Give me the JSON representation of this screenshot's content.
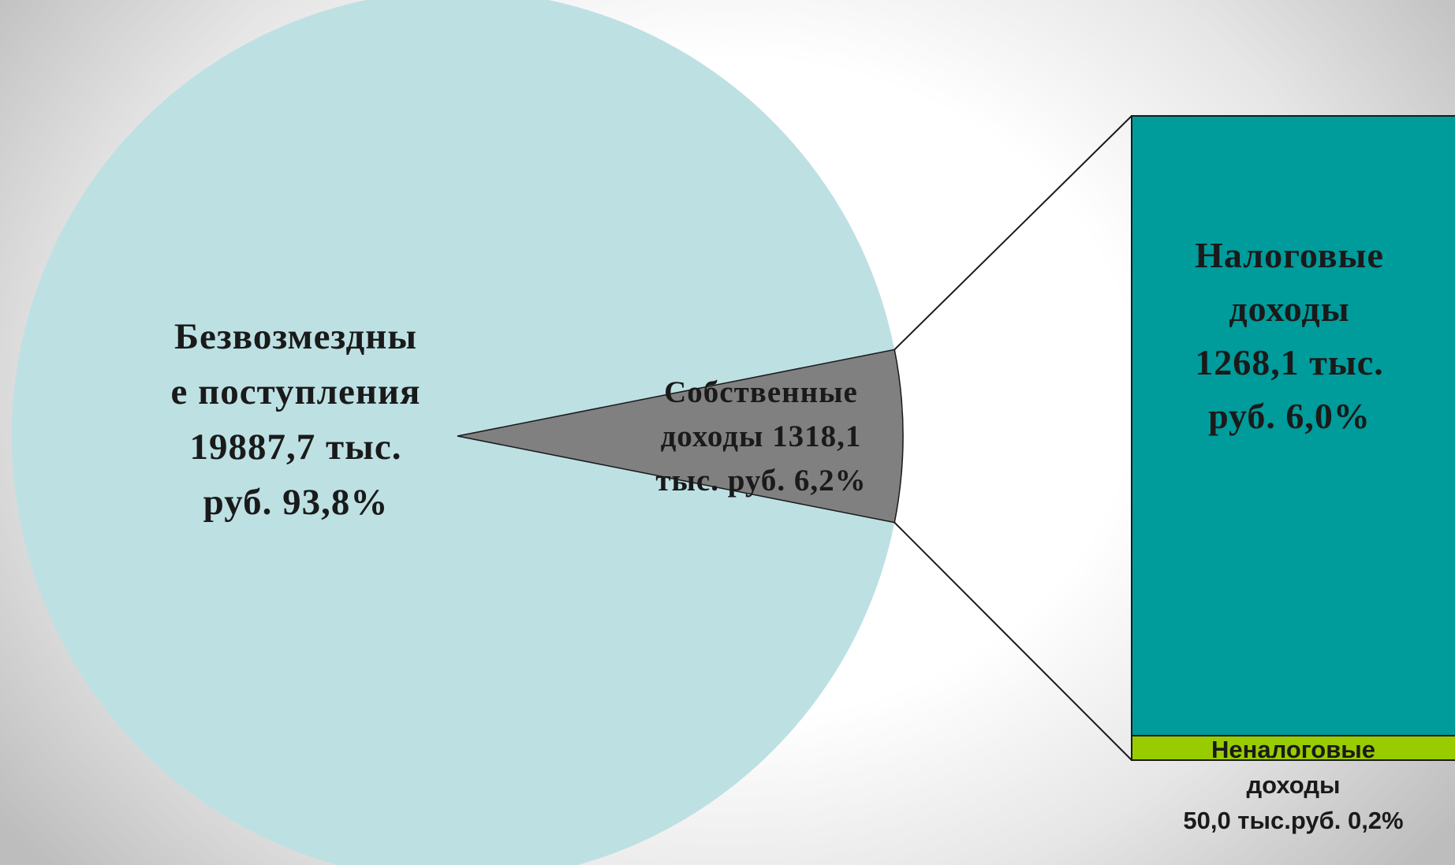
{
  "chart_data": {
    "type": "pie",
    "subtype": "bar-of-pie",
    "unit": "тыс. руб.",
    "pie": {
      "slices": [
        {
          "name": "Безвозмездные поступления",
          "value": 19887.7,
          "percent": 93.8,
          "color": "#bde0e3",
          "label_lines": [
            "Безвозмездны",
            "е поступления",
            "19887,7 тыс.",
            "руб. 93,8%"
          ]
        },
        {
          "name": "Собственные доходы",
          "value": 1318.1,
          "percent": 6.2,
          "color": "#808080",
          "label_lines": [
            "Собственные",
            "доходы 1318,1",
            "тыс. руб. 6,2%"
          ]
        }
      ]
    },
    "bar": {
      "breakdown_of": "Собственные доходы",
      "segments": [
        {
          "name": "Налоговые доходы",
          "value": 1268.1,
          "percent": 6.0,
          "color": "#009b9b",
          "label_lines": [
            "Налоговые",
            "доходы",
            "1268,1 тыс.",
            "руб. 6,0%"
          ]
        },
        {
          "name": "Неналоговые доходы",
          "value": 50.0,
          "percent": 0.2,
          "color": "#99cc00",
          "label_lines": [
            "Неналоговые",
            "доходы",
            "50,0 тыс.руб. 0,2%"
          ]
        }
      ]
    },
    "legend": "none"
  }
}
